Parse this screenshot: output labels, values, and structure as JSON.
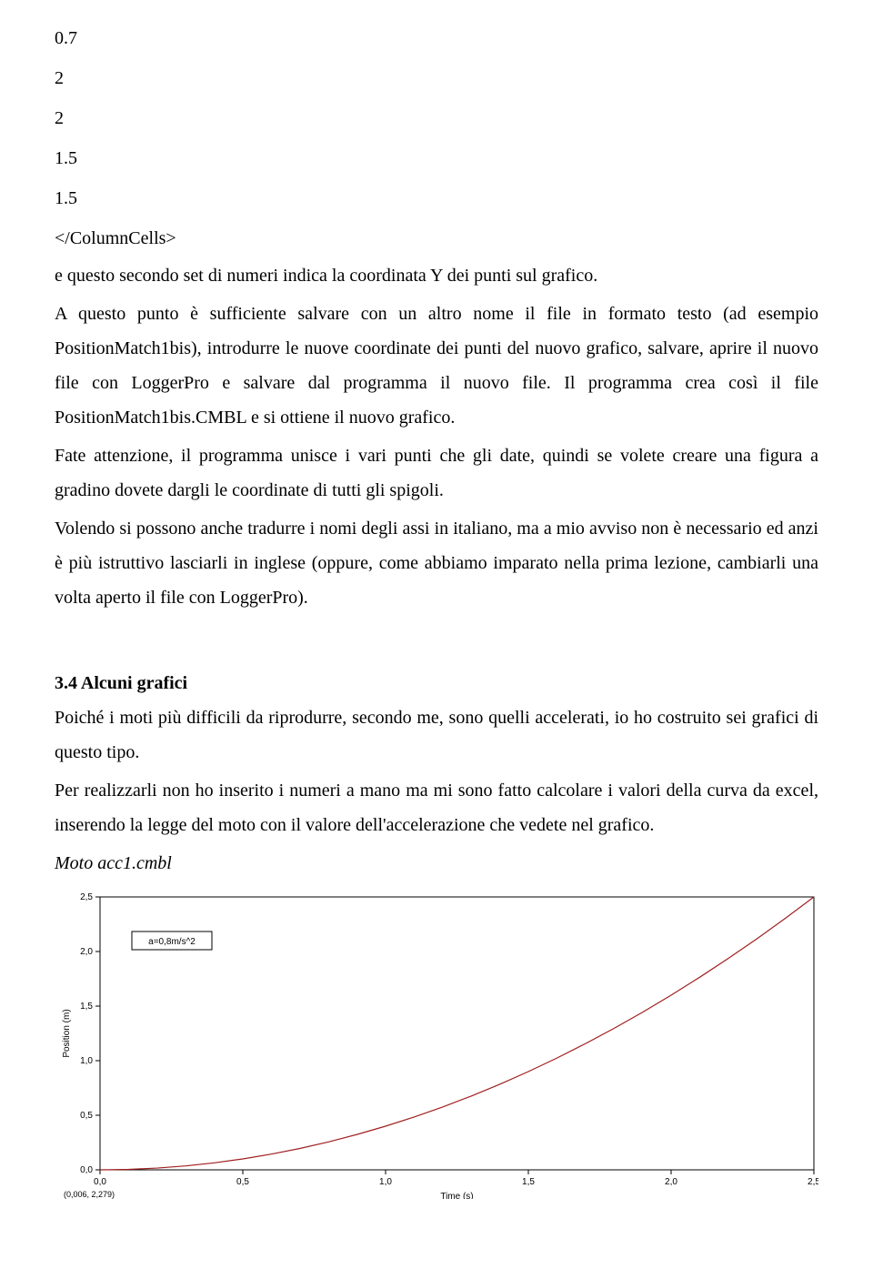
{
  "data_values": [
    "0.7",
    "2",
    "2",
    "1.5",
    "1.5"
  ],
  "closing_tag": "</ColumnCells>",
  "p1": "e questo secondo set di numeri indica la coordinata Y dei punti sul grafico.",
  "p2": "A questo punto è sufficiente salvare con un altro nome il file in formato testo (ad esempio PositionMatch1bis), introdurre le nuove coordinate dei punti del nuovo grafico, salvare, aprire il nuovo file con LoggerPro e salvare dal programma il nuovo file. Il programma crea così il file PositionMatch1bis.CMBL e si ottiene il nuovo grafico.",
  "p3": "Fate attenzione, il programma unisce i vari punti che gli date, quindi se volete creare una figura a gradino dovete dargli le coordinate di tutti gli spigoli.",
  "p4": "Volendo si possono anche tradurre i nomi degli assi in italiano, ma a mio avviso non è necessario ed anzi è più istruttivo lasciarli in inglese (oppure, come abbiamo imparato nella prima lezione, cambiarli una volta aperto il file con LoggerPro).",
  "section_heading": "3.4 Alcuni grafici",
  "p5": "Poiché i moti più difficili da riprodurre, secondo me, sono quelli accelerati, io ho costruito sei grafici di questo tipo.",
  "p6": "Per realizzarli non ho inserito i numeri a mano ma mi sono fatto calcolare i valori della curva da excel, inserendo la legge del moto con il valore dell'accelerazione che vedete nel grafico.",
  "p7_italic": "Moto acc1.cmbl",
  "chart": {
    "type": "line",
    "acceleration_label": "a=0,8m/s^2",
    "xlabel": "Time (s)",
    "ylabel": "Position (m)",
    "x_ticks": [
      0.0,
      0.5,
      1.0,
      1.5,
      2.0,
      2.5
    ],
    "x_tick_labels": [
      "0,0",
      "0,5",
      "1,0",
      "1,5",
      "2,0",
      "2,5"
    ],
    "y_ticks": [
      0.0,
      0.5,
      1.0,
      1.5,
      2.0,
      2.5
    ],
    "y_tick_labels": [
      "0,0",
      "0,5",
      "1,0",
      "1,5",
      "2,0",
      "2,5"
    ],
    "xlim": [
      0.0,
      2.5
    ],
    "ylim": [
      0.0,
      2.5
    ],
    "curve_color": "#a02020",
    "curve_width": 1.2,
    "axis_color": "#000000",
    "background_color": "#ffffff",
    "label_box_border": "#000000",
    "coord_readout": "(0,006, 2,279)",
    "curve_points": [
      [
        0.0,
        0.0
      ],
      [
        0.1,
        0.004
      ],
      [
        0.2,
        0.016
      ],
      [
        0.3,
        0.036
      ],
      [
        0.4,
        0.064
      ],
      [
        0.5,
        0.1
      ],
      [
        0.6,
        0.144
      ],
      [
        0.7,
        0.196
      ],
      [
        0.8,
        0.256
      ],
      [
        0.9,
        0.324
      ],
      [
        1.0,
        0.4
      ],
      [
        1.1,
        0.484
      ],
      [
        1.2,
        0.576
      ],
      [
        1.3,
        0.676
      ],
      [
        1.4,
        0.784
      ],
      [
        1.5,
        0.9
      ],
      [
        1.6,
        1.024
      ],
      [
        1.7,
        1.156
      ],
      [
        1.8,
        1.296
      ],
      [
        1.9,
        1.444
      ],
      [
        2.0,
        1.6
      ],
      [
        2.1,
        1.764
      ],
      [
        2.2,
        1.936
      ],
      [
        2.3,
        2.116
      ],
      [
        2.4,
        2.304
      ],
      [
        2.5,
        2.5
      ]
    ]
  }
}
